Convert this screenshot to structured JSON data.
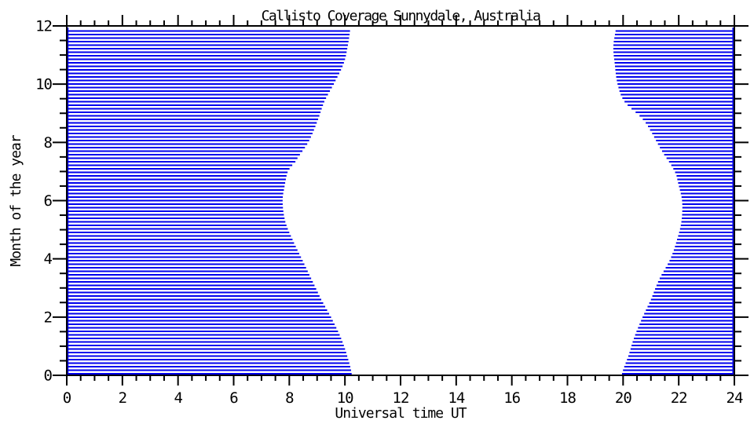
{
  "chart_data": {
    "type": "area",
    "title": "Callisto Coverage Sunnydale, Australia",
    "xlabel": "Universal time UT",
    "ylabel": "Month of the year",
    "xlim": [
      0,
      24
    ],
    "ylim": [
      0,
      12
    ],
    "x_major_tick_step": 2,
    "x_minor_tick_step": 0.5,
    "y_major_tick_step": 2,
    "y_minor_tick_step": 0.5,
    "x_tick_labels": [
      "0",
      "2",
      "4",
      "6",
      "8",
      "10",
      "12",
      "14",
      "16",
      "18",
      "20",
      "22",
      "24"
    ],
    "y_tick_labels": [
      "0",
      "2",
      "4",
      "6",
      "8",
      "10",
      "12"
    ],
    "grid": false,
    "legend": null,
    "tick_direction": "outward",
    "hatch_style": "horizontal-lines",
    "hatch_color": "#0000EE",
    "frame_color": "#000000",
    "background_color": "#FFFFFF",
    "coverage_regions": [
      {
        "name": "coverage-early-ut",
        "ut_start": 0,
        "edge_side": "end",
        "edge_points_month_ut": [
          [
            0,
            10.25
          ],
          [
            0.6,
            10.1
          ],
          [
            1.3,
            9.85
          ],
          [
            2,
            9.5
          ],
          [
            2.6,
            9.15
          ],
          [
            3.3,
            8.8
          ],
          [
            4,
            8.45
          ],
          [
            4.7,
            8.1
          ],
          [
            5.3,
            7.85
          ],
          [
            6,
            7.76
          ],
          [
            6.6,
            7.85
          ],
          [
            7,
            7.95
          ],
          [
            7.3,
            8.2
          ],
          [
            8,
            8.68
          ],
          [
            8.7,
            9.0
          ],
          [
            9.4,
            9.26
          ],
          [
            10,
            9.6
          ],
          [
            10.7,
            9.95
          ],
          [
            11.3,
            10.1
          ],
          [
            12,
            10.2
          ]
        ]
      },
      {
        "name": "coverage-late-ut",
        "ut_end": 24,
        "edge_side": "start",
        "edge_points_month_ut": [
          [
            0,
            19.95
          ],
          [
            0.7,
            20.2
          ],
          [
            1.3,
            20.4
          ],
          [
            2,
            20.7
          ],
          [
            2.6,
            21.0
          ],
          [
            3.3,
            21.3
          ],
          [
            4,
            21.7
          ],
          [
            4.7,
            21.95
          ],
          [
            5.3,
            22.1
          ],
          [
            6,
            22.12
          ],
          [
            6.6,
            21.98
          ],
          [
            7,
            21.85
          ],
          [
            7.7,
            21.4
          ],
          [
            8.3,
            21.05
          ],
          [
            8.8,
            20.7
          ],
          [
            9.4,
            20.05
          ],
          [
            10,
            19.8
          ],
          [
            10.7,
            19.7
          ],
          [
            11.3,
            19.65
          ],
          [
            12,
            19.75
          ]
        ]
      }
    ]
  }
}
